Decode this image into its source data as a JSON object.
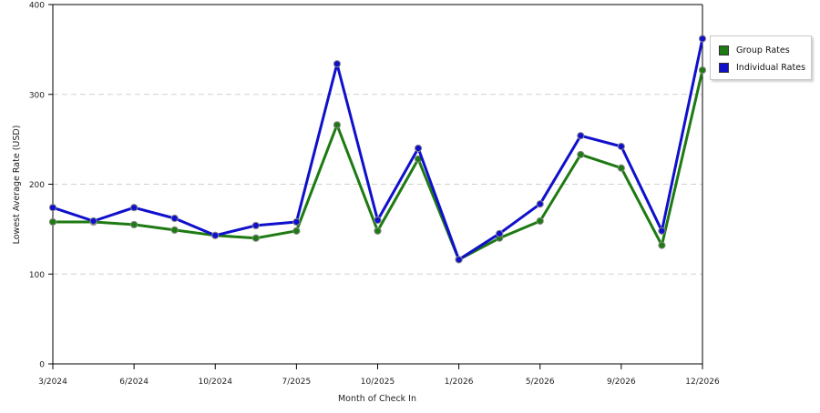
{
  "chart_data": {
    "type": "line",
    "xlabel": "Month of Check In",
    "ylabel": "Lowest Average Rate (USD)",
    "ylim": [
      0,
      400
    ],
    "yticks": [
      0,
      100,
      200,
      300,
      400
    ],
    "xtick_labels": [
      "3/2024",
      "6/2024",
      "10/2024",
      "7/2025",
      "10/2025",
      "1/2026",
      "5/2026",
      "9/2026",
      "12/2026"
    ],
    "grid": "horizontal dashed",
    "legend_position": "right",
    "series": [
      {
        "name": "Group Rates",
        "color": "#1e7a12",
        "values": [
          158,
          158,
          155,
          149,
          143,
          140,
          148,
          266,
          148,
          228,
          116,
          140,
          159,
          233,
          218,
          132,
          327
        ]
      },
      {
        "name": "Individual Rates",
        "color": "#1010cc",
        "values": [
          174,
          159,
          174,
          162,
          143,
          154,
          158,
          334,
          160,
          240,
          116,
          145,
          178,
          254,
          242,
          148,
          362
        ]
      }
    ]
  }
}
